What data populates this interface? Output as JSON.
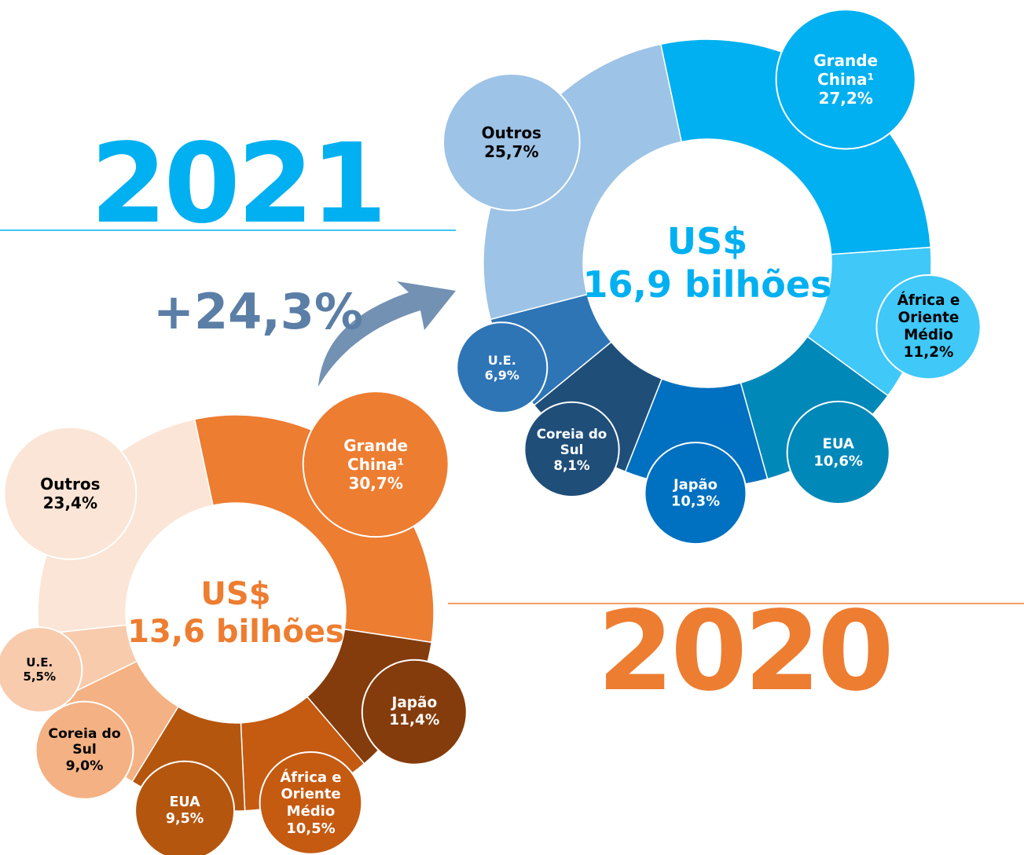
{
  "chart_data": [
    {
      "type": "donut",
      "year": "2021",
      "center_label": "US$",
      "total_label": "16,9 bilhões",
      "color": "#00b0f0",
      "categories": [
        "Grande China¹",
        "África e Oriente Médio",
        "EUA",
        "Japão",
        "Coreia do Sul",
        "U.E.",
        "Outros"
      ],
      "values": [
        27.2,
        11.2,
        10.6,
        10.3,
        8.1,
        6.9,
        25.7
      ],
      "value_labels": [
        "27,2%",
        "11,2%",
        "10,6%",
        "10,3%",
        "8,1%",
        "6,9%",
        "25,7%"
      ],
      "colors": [
        "#00b0f0",
        "#3fc8f8",
        "#0088b8",
        "#0070c0",
        "#1f4e79",
        "#2e75b6",
        "#9dc3e6"
      ],
      "label_colors": [
        "#ffffff",
        "#000000",
        "#ffffff",
        "#ffffff",
        "#ffffff",
        "#ffffff",
        "#000000"
      ]
    },
    {
      "type": "donut",
      "year": "2020",
      "center_label": "US$",
      "total_label": "13,6 bilhões",
      "color": "#ed7d31",
      "categories": [
        "Grande China¹",
        "Japão",
        "África e Oriente Médio",
        "EUA",
        "Coreia do Sul",
        "U.E.",
        "Outros"
      ],
      "values": [
        30.7,
        11.4,
        10.5,
        9.5,
        9.0,
        5.5,
        23.4
      ],
      "value_labels": [
        "30,7%",
        "11,4%",
        "10,5%",
        "9,5%",
        "9,0%",
        "5,5%",
        "23,4%"
      ],
      "colors": [
        "#ed7d31",
        "#843c0c",
        "#c55a11",
        "#b5560f",
        "#f4b183",
        "#f8cbad",
        "#fbe5d6"
      ],
      "label_colors": [
        "#ffffff",
        "#ffffff",
        "#ffffff",
        "#ffffff",
        "#000000",
        "#000000",
        "#000000"
      ]
    }
  ],
  "annotation": "+24,3%"
}
